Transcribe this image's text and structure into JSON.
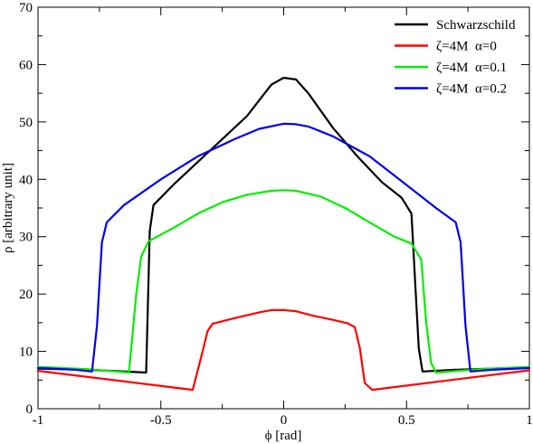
{
  "chart_data": {
    "type": "line",
    "title": "",
    "xlabel": "ϕ [rad]",
    "ylabel": "ρ [arbitrary unit]",
    "xlim": [
      -1,
      1
    ],
    "ylim": [
      0,
      70
    ],
    "x_ticks": [
      -1,
      -0.5,
      0,
      0.5,
      1
    ],
    "y_ticks": [
      0,
      10,
      20,
      30,
      40,
      50,
      60,
      70
    ],
    "x_tick_labels": [
      "-1",
      "-0.5",
      "0",
      "0.5",
      "1"
    ],
    "y_tick_labels": [
      "0",
      "10",
      "20",
      "30",
      "40",
      "50",
      "60",
      "70"
    ],
    "grid": false,
    "legend_position": "top-right",
    "series": [
      {
        "name": "Schwarzschild",
        "color": "#000000",
        "points": [
          [
            -1,
            7.0
          ],
          [
            -0.8,
            6.8
          ],
          [
            -0.7,
            6.6
          ],
          [
            -0.56,
            6.3
          ],
          [
            -0.545,
            31.0
          ],
          [
            -0.53,
            35.5
          ],
          [
            -0.45,
            39.0
          ],
          [
            -0.3,
            45.0
          ],
          [
            -0.15,
            51.0
          ],
          [
            -0.05,
            56.5
          ],
          [
            0,
            57.7
          ],
          [
            0.05,
            57.4
          ],
          [
            0.1,
            55.0
          ],
          [
            0.2,
            49.0
          ],
          [
            0.3,
            44.0
          ],
          [
            0.4,
            39.5
          ],
          [
            0.48,
            36.8
          ],
          [
            0.52,
            34.0
          ],
          [
            0.535,
            22.0
          ],
          [
            0.55,
            10.5
          ],
          [
            0.565,
            6.5
          ],
          [
            0.7,
            6.8
          ],
          [
            1,
            7.2
          ]
        ]
      },
      {
        "name": "ζ=4M  α=0",
        "color": "#ff0000",
        "points": [
          [
            -1,
            6.6
          ],
          [
            -0.37,
            3.3
          ],
          [
            -0.33,
            10.0
          ],
          [
            -0.31,
            13.5
          ],
          [
            -0.29,
            14.8
          ],
          [
            -0.2,
            15.8
          ],
          [
            -0.1,
            16.8
          ],
          [
            -0.05,
            17.2
          ],
          [
            0,
            17.2
          ],
          [
            0.05,
            17.0
          ],
          [
            0.12,
            16.2
          ],
          [
            0.2,
            15.5
          ],
          [
            0.26,
            14.9
          ],
          [
            0.29,
            14.2
          ],
          [
            0.31,
            10.5
          ],
          [
            0.33,
            4.5
          ],
          [
            0.36,
            3.3
          ],
          [
            1,
            6.7
          ]
        ]
      },
      {
        "name": "ζ=4M  α=0.1",
        "color": "#00ee00",
        "points": [
          [
            -1,
            7.3
          ],
          [
            -0.8,
            6.9
          ],
          [
            -0.63,
            6.3
          ],
          [
            -0.6,
            20.0
          ],
          [
            -0.58,
            26.5
          ],
          [
            -0.55,
            29.2
          ],
          [
            -0.45,
            31.5
          ],
          [
            -0.35,
            34.0
          ],
          [
            -0.25,
            36.0
          ],
          [
            -0.15,
            37.3
          ],
          [
            -0.05,
            38.0
          ],
          [
            0,
            38.1
          ],
          [
            0.05,
            38.0
          ],
          [
            0.15,
            37.0
          ],
          [
            0.25,
            35.0
          ],
          [
            0.35,
            32.5
          ],
          [
            0.45,
            30.0
          ],
          [
            0.52,
            28.8
          ],
          [
            0.56,
            26.0
          ],
          [
            0.58,
            15.0
          ],
          [
            0.6,
            8.0
          ],
          [
            0.62,
            6.3
          ],
          [
            0.8,
            6.9
          ],
          [
            1,
            7.3
          ]
        ]
      },
      {
        "name": "ζ=4M  α=0.2",
        "color": "#0000ee",
        "points": [
          [
            -1,
            7.1
          ],
          [
            -0.85,
            6.8
          ],
          [
            -0.78,
            6.5
          ],
          [
            -0.76,
            14.5
          ],
          [
            -0.74,
            29.0
          ],
          [
            -0.72,
            32.5
          ],
          [
            -0.65,
            35.5
          ],
          [
            -0.5,
            40.0
          ],
          [
            -0.35,
            44.0
          ],
          [
            -0.2,
            47.0
          ],
          [
            -0.1,
            48.8
          ],
          [
            0,
            49.7
          ],
          [
            0.05,
            49.6
          ],
          [
            0.1,
            49.2
          ],
          [
            0.2,
            47.5
          ],
          [
            0.35,
            44.0
          ],
          [
            0.5,
            39.0
          ],
          [
            0.62,
            35.0
          ],
          [
            0.7,
            32.5
          ],
          [
            0.72,
            29.0
          ],
          [
            0.74,
            14.5
          ],
          [
            0.76,
            6.5
          ],
          [
            0.85,
            6.8
          ],
          [
            1,
            7.1
          ]
        ]
      }
    ]
  }
}
